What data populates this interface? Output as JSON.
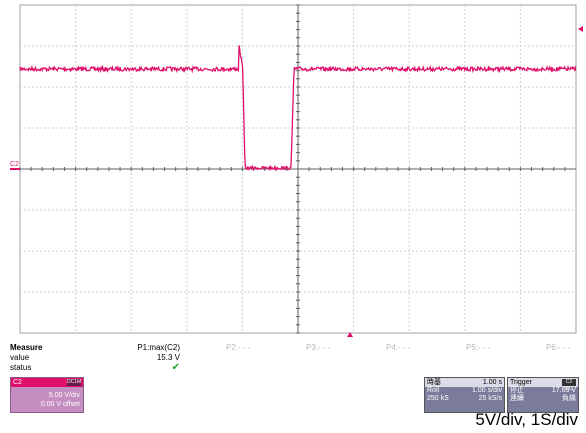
{
  "colors": {
    "trace": "#e0106a",
    "grid": "#d0d0d0",
    "axis": "#606060",
    "panel": "#7b7b9b",
    "channel_box": "#c48ec0"
  },
  "screen": {
    "channel_marker": "C2"
  },
  "measure": {
    "title": "Measure",
    "row_value": "value",
    "row_status": "status",
    "p1_label": "P1:max(C2)",
    "p1_value": "15.3 V",
    "p1_status_icon": "checkmark-icon",
    "p2": "P2:- - -",
    "p3": "P3:- - -",
    "p4": "P4:- - -",
    "p5": "P5:- - -",
    "p6": "P6:- - -"
  },
  "channel": {
    "name": "C2",
    "coupling_tag": "DC1M",
    "scale": "5.00 V/div",
    "offset": "0.00 V offset"
  },
  "timebase": {
    "title": "時基",
    "value": "1.00 s",
    "mode": "Roll",
    "scale": "1.00 s/div",
    "samples": "250 kS",
    "rate": "25 kS/s"
  },
  "trigger": {
    "title": "Trigger",
    "tag": "C2 DC",
    "state": "停止",
    "level": "17.65 V",
    "mode": "連續",
    "slope": "負緣"
  },
  "caption": "5V/div, 1S/div"
}
